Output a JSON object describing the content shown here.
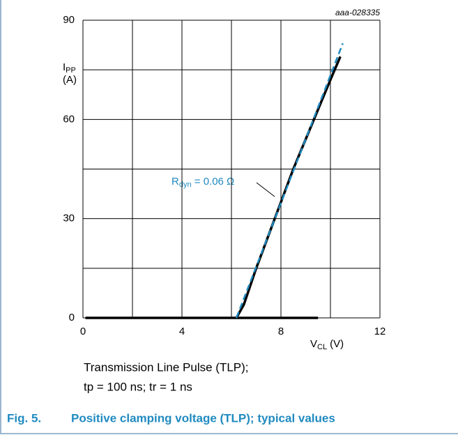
{
  "chart_data": {
    "type": "line",
    "figure_id": "aaa-028335",
    "ylabel": {
      "main": "I",
      "sub": "PP",
      "unit": "(A)"
    },
    "xlabel": {
      "main": "V",
      "sub": "CL",
      "unit": "(V)"
    },
    "xlim": [
      0,
      12
    ],
    "xticks": [
      0,
      4,
      8,
      12
    ],
    "x_minor_grid": [
      2,
      6,
      10
    ],
    "ylim": [
      0,
      90
    ],
    "yticks": [
      0,
      30,
      60,
      90
    ],
    "y_minor_grid": [
      15,
      45,
      75
    ],
    "grid": true,
    "series": [
      {
        "color": "#000000",
        "style": "solid",
        "x": [
          0.1,
          9.5
        ],
        "values": [
          0,
          0
        ]
      },
      {
        "color": "#000000",
        "style": "solid",
        "x": [
          6.2,
          6.5,
          7,
          7.5,
          8,
          8.5,
          9,
          9.5,
          10,
          10.4
        ],
        "values": [
          0,
          4,
          15,
          25,
          35,
          45,
          54,
          63,
          72,
          79
        ]
      },
      {
        "color": "#1f8ac0",
        "style": "dashed",
        "x": [
          6.2,
          10.5
        ],
        "values": [
          0,
          83
        ]
      }
    ],
    "annotation": {
      "main": "R",
      "sub": "dyn",
      "rest": " = 0.06 Ω",
      "color": "#1f8ac0"
    },
    "caption": [
      "Transmission Line Pulse (TLP);",
      "tp = 100 ns; tr = 1 ns"
    ],
    "figure_label": "Fig. 5.",
    "figure_title": "Positive clamping voltage (TLP); typical values"
  }
}
